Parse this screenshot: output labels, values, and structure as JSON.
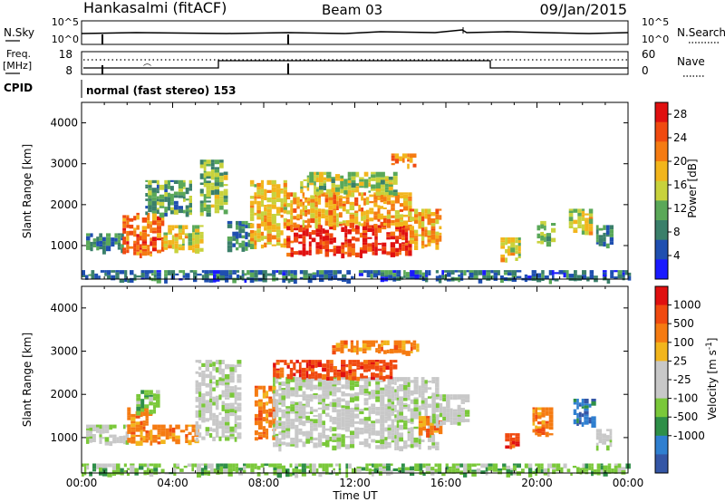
{
  "header": {
    "station": "Hankasalmi (fitACF)",
    "beam": "Beam 03",
    "date": "09/Jan/2015"
  },
  "params": {
    "nsky_label": "N.Sky",
    "nsky_ticks": [
      "10^5",
      "10^0"
    ],
    "nsearch_label": "N.Search",
    "nsearch_ticks": [
      "10^5",
      "10^0"
    ],
    "freq_label_1": "Freq.",
    "freq_label_2": "[MHz]",
    "freq_ticks": [
      "18",
      "8"
    ],
    "nave_label": "Nave",
    "nave_ticks": [
      "60",
      "0"
    ],
    "cpid_label": "CPID",
    "cpid_value": "normal (fast stereo) 153"
  },
  "colors": {
    "power_scale": [
      "#1a1aff",
      "#1f4fb0",
      "#3a7f6a",
      "#5aa858",
      "#c8d23c",
      "#f2b51c",
      "#f57b12",
      "#f04a10",
      "#e01010"
    ],
    "velocity_scale": [
      "#3456a6",
      "#2f7fd0",
      "#2e8f48",
      "#7ac83a",
      "#c8c8c8",
      "#c8c8c8",
      "#f2b51c",
      "#f57b12",
      "#f04a10",
      "#e01010"
    ]
  },
  "chart_data": [
    {
      "type": "heatmap",
      "name": "power",
      "ylabel": "Slant Range [km]",
      "xlabel": "",
      "xlim": [
        0,
        24
      ],
      "ylim": [
        180,
        4500
      ],
      "yticks": [
        1000,
        2000,
        3000,
        4000
      ],
      "colorbar": {
        "label": "Power [dB]",
        "ticks": [
          "28",
          "24",
          "20",
          "16",
          "12",
          "8",
          "4"
        ],
        "range": [
          0,
          30
        ]
      },
      "regions": [
        {
          "t0": 0.2,
          "t1": 1.8,
          "r0": 900,
          "r1": 1300,
          "level": 8
        },
        {
          "t0": 1.8,
          "t1": 3.6,
          "r0": 800,
          "r1": 1800,
          "level": 24
        },
        {
          "t0": 3.6,
          "t1": 5.2,
          "r0": 900,
          "r1": 1500,
          "level": 16
        },
        {
          "t0": 2.8,
          "t1": 4.8,
          "r0": 1800,
          "r1": 2600,
          "level": 10
        },
        {
          "t0": 5.2,
          "t1": 6.4,
          "r0": 1800,
          "r1": 3100,
          "level": 12
        },
        {
          "t0": 6.4,
          "t1": 7.4,
          "r0": 900,
          "r1": 1600,
          "level": 8
        },
        {
          "t0": 7.4,
          "t1": 9.0,
          "r0": 1000,
          "r1": 2600,
          "level": 18
        },
        {
          "t0": 9.0,
          "t1": 14.4,
          "r0": 800,
          "r1": 1500,
          "level": 28
        },
        {
          "t0": 9.0,
          "t1": 14.4,
          "r0": 1500,
          "r1": 2300,
          "level": 20
        },
        {
          "t0": 9.6,
          "t1": 13.8,
          "r0": 2300,
          "r1": 2800,
          "level": 14
        },
        {
          "t0": 14.4,
          "t1": 15.8,
          "r0": 1000,
          "r1": 1900,
          "level": 20
        },
        {
          "t0": 13.6,
          "t1": 14.6,
          "r0": 3000,
          "r1": 3250,
          "level": 22
        },
        {
          "t0": 18.4,
          "t1": 19.2,
          "r0": 700,
          "r1": 1200,
          "level": 16
        },
        {
          "t0": 20.0,
          "t1": 20.8,
          "r0": 1100,
          "r1": 1600,
          "level": 12
        },
        {
          "t0": 21.4,
          "t1": 22.4,
          "r0": 1300,
          "r1": 1900,
          "level": 16
        },
        {
          "t0": 22.6,
          "t1": 23.2,
          "r0": 1000,
          "r1": 1500,
          "level": 8
        },
        {
          "t0": 0.0,
          "t1": 24.0,
          "r0": 180,
          "r1": 400,
          "level": 6
        }
      ]
    },
    {
      "type": "heatmap",
      "name": "velocity",
      "ylabel": "Slant Range [km]",
      "xlabel": "Time UT",
      "xlim": [
        0,
        24
      ],
      "ylim": [
        180,
        4500
      ],
      "yticks": [
        1000,
        2000,
        3000,
        4000
      ],
      "xticks": [
        "00:00",
        "04:00",
        "08:00",
        "12:00",
        "16:00",
        "20:00",
        "00:00"
      ],
      "colorbar": {
        "label": "Velocity [m s",
        "label_sup": "-1",
        "label_end": "]",
        "ticks": [
          "1000",
          "500",
          "100",
          "25",
          "-25",
          "-100",
          "-500",
          "-1000"
        ]
      },
      "regions": [
        {
          "t0": 0.2,
          "t1": 2.0,
          "r0": 900,
          "r1": 1300,
          "level": 4
        },
        {
          "t0": 2.0,
          "t1": 3.0,
          "r0": 900,
          "r1": 1700,
          "level": 7
        },
        {
          "t0": 3.0,
          "t1": 5.0,
          "r0": 900,
          "r1": 1300,
          "level": 7
        },
        {
          "t0": 2.4,
          "t1": 3.4,
          "r0": 1600,
          "r1": 2100,
          "level": 3
        },
        {
          "t0": 5.0,
          "t1": 7.0,
          "r0": 1000,
          "r1": 2800,
          "level": 4
        },
        {
          "t0": 7.6,
          "t1": 8.4,
          "r0": 1000,
          "r1": 2200,
          "level": 7
        },
        {
          "t0": 8.4,
          "t1": 15.6,
          "r0": 800,
          "r1": 2400,
          "level": 4
        },
        {
          "t0": 8.4,
          "t1": 13.8,
          "r0": 2400,
          "r1": 2800,
          "level": 8
        },
        {
          "t0": 11.0,
          "t1": 14.8,
          "r0": 3000,
          "r1": 3250,
          "level": 7
        },
        {
          "t0": 14.8,
          "t1": 15.8,
          "r0": 1100,
          "r1": 1500,
          "level": 7
        },
        {
          "t0": 15.4,
          "t1": 17.0,
          "r0": 1300,
          "r1": 2000,
          "level": 4
        },
        {
          "t0": 18.6,
          "t1": 19.2,
          "r0": 800,
          "r1": 1100,
          "level": 8
        },
        {
          "t0": 19.8,
          "t1": 20.6,
          "r0": 1100,
          "r1": 1700,
          "level": 7
        },
        {
          "t0": 21.6,
          "t1": 22.4,
          "r0": 1300,
          "r1": 1900,
          "level": 1
        },
        {
          "t0": 22.6,
          "t1": 23.2,
          "r0": 800,
          "r1": 1200,
          "level": 4
        },
        {
          "t0": 0.0,
          "t1": 24.0,
          "r0": 180,
          "r1": 400,
          "level": 3
        }
      ]
    }
  ]
}
